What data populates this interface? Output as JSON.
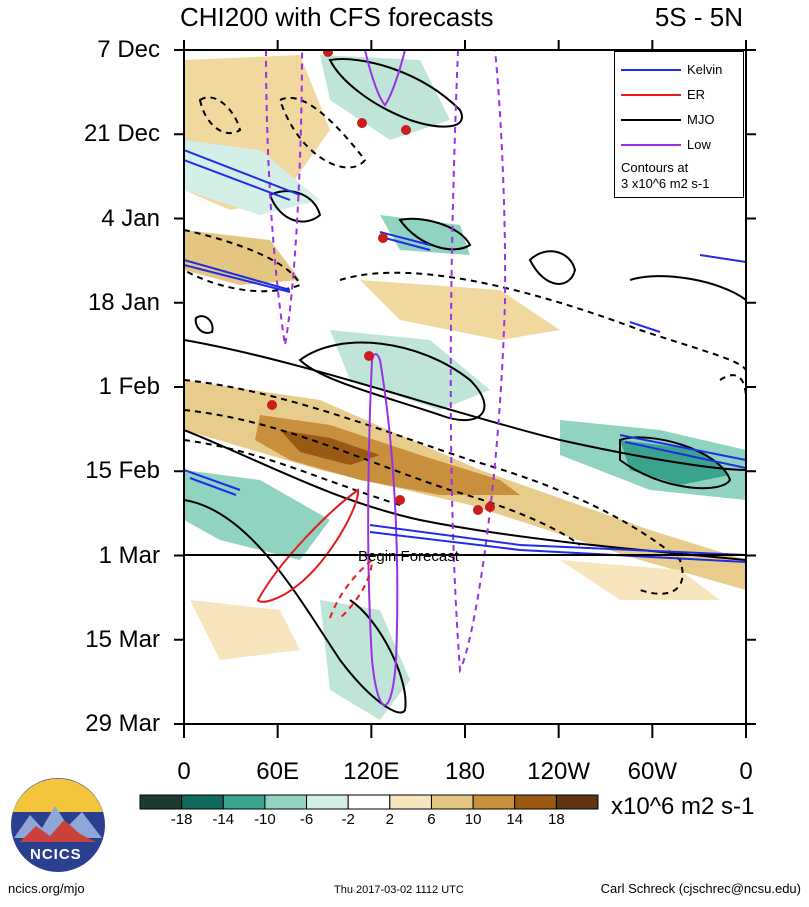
{
  "title": "CHI200 with CFS forecasts",
  "region": "5S - 5N",
  "y_labels": [
    "7 Dec",
    "21 Dec",
    "4 Jan",
    "18 Jan",
    "1 Feb",
    "15 Feb",
    "1 Mar",
    "15 Mar",
    "29 Mar"
  ],
  "x_labels": [
    "0",
    "60E",
    "120E",
    "180",
    "120W",
    "60W",
    "0"
  ],
  "legend": {
    "items": [
      {
        "label": "Kelvin",
        "color": "#1f2ee6"
      },
      {
        "label": "ER",
        "color": "#e61a1a"
      },
      {
        "label": "MJO",
        "color": "#000000"
      },
      {
        "label": "Low",
        "color": "#9b30e6"
      }
    ],
    "note_line1": "Contours at",
    "note_line2": "3 x10^6 m2 s-1"
  },
  "begin_forecast": "Begin Forecast",
  "colorbar": {
    "ticks": [
      "-18",
      "-14",
      "-10",
      "-6",
      "-2",
      "2",
      "6",
      "10",
      "14",
      "18"
    ],
    "colors": [
      "#1d3b33",
      "#0f6b5e",
      "#3aa38e",
      "#8fd3c0",
      "#d3efe7",
      "#ffffff",
      "#f7e6bd",
      "#e5c680",
      "#c88f3c",
      "#9a5a14",
      "#5e3510"
    ],
    "units": "x10^6 m2 s-1"
  },
  "footer": {
    "left": "ncics.org/mjo",
    "center": "Thu 2017-03-02 1112 UTC",
    "right": "Carl Schreck (cjschrec@ncsu.edu)"
  },
  "logo_text": "NCICS",
  "chart_data": {
    "type": "heatmap",
    "title": "CHI200 with CFS forecasts",
    "subtitle": "5S - 5N",
    "x_axis": {
      "ticks": [
        "0",
        "60E",
        "120E",
        "180",
        "120W",
        "60W",
        "0"
      ],
      "range_deg": [
        0,
        360
      ]
    },
    "y_axis": {
      "ticks": [
        "7 Dec",
        "21 Dec",
        "4 Jan",
        "18 Jan",
        "1 Feb",
        "15 Feb",
        "1 Mar",
        "15 Mar",
        "29 Mar"
      ],
      "direction": "time increases downward"
    },
    "colorbar_levels": [
      -18,
      -14,
      -10,
      -6,
      -2,
      2,
      6,
      10,
      14,
      18
    ],
    "units": "x10^6 m2 s-1",
    "forecast_start": "1 Mar",
    "series": [
      {
        "name": "Kelvin"
      },
      {
        "name": "ER"
      },
      {
        "name": "MJO"
      },
      {
        "name": "Low"
      }
    ],
    "contour_interval": "3 x10^6 m2 s-1",
    "legend_position": "top-right"
  }
}
